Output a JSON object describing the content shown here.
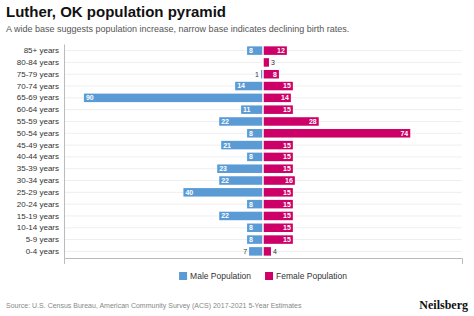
{
  "chart_data": {
    "type": "bar",
    "orientation": "horizontal",
    "title": "Luther, OK population pyramid",
    "subtitle": "A wide base suggests population increase, narrow base indicates declining birth rates.",
    "annotations": [
      "Source: U.S. Census Bureau, American Community Survey (ACS) 2017-2021 5-Year Estimates",
      "Neilsberg"
    ],
    "categories": [
      "0-4 years",
      "5-9 years",
      "10-14 years",
      "15-19 years",
      "20-24 years",
      "25-29 years",
      "30-34 years",
      "35-39 years",
      "40-44 years",
      "45-49 years",
      "50-54 years",
      "55-59 years",
      "60-64 years",
      "65-69 years",
      "70-74 years",
      "75-79 years",
      "80-84 years",
      "85+ years"
    ],
    "series": [
      {
        "name": "Male Population",
        "color": "#5b9bd5",
        "values": [
          7,
          8,
          8,
          22,
          8,
          40,
          22,
          23,
          8,
          21,
          8,
          22,
          11,
          90,
          14,
          1,
          0,
          8
        ]
      },
      {
        "name": "Female Population",
        "color": "#cc0066",
        "values": [
          4,
          15,
          15,
          15,
          15,
          15,
          16,
          15,
          15,
          15,
          74,
          28,
          15,
          14,
          15,
          8,
          3,
          12
        ]
      }
    ],
    "xlim": [
      -100,
      100
    ],
    "xticks": [],
    "tick_labels": "y",
    "grid": true,
    "legend": "bottom",
    "data_labels": true
  }
}
